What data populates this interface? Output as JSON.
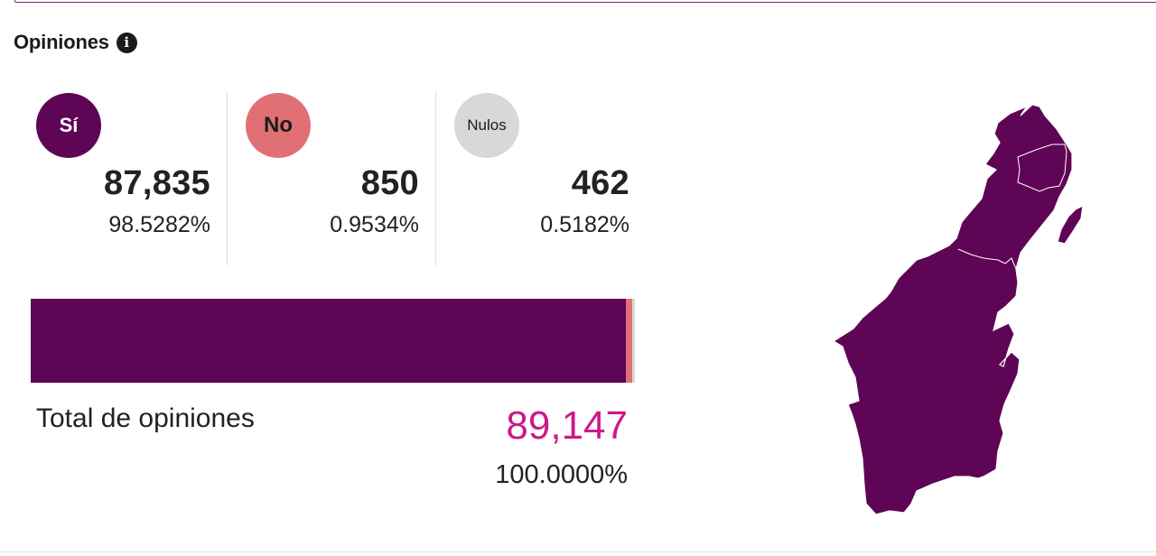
{
  "header": {
    "title": "Opiniones",
    "info_icon": "info-icon"
  },
  "options": [
    {
      "label": "Sí",
      "count": "87,835",
      "percent": "98.5282%",
      "share": 0.985282,
      "color": "#5f0555",
      "text_color": "#ffffff"
    },
    {
      "label": "No",
      "count": "850",
      "percent": "0.9534%",
      "share": 0.009534,
      "color": "#e07074",
      "text_color": "#1b1b1b"
    },
    {
      "label": "Nulos",
      "count": "462",
      "percent": "0.5182%",
      "share": 0.005182,
      "color": "#d8d8d8",
      "text_color": "#1b1b1b"
    }
  ],
  "total": {
    "label": "Total de opiniones",
    "value": "89,147",
    "percent": "100.0000%",
    "value_color": "#cc1a8a"
  },
  "map": {
    "fill": "#5f0555",
    "border": "#ffffff"
  }
}
